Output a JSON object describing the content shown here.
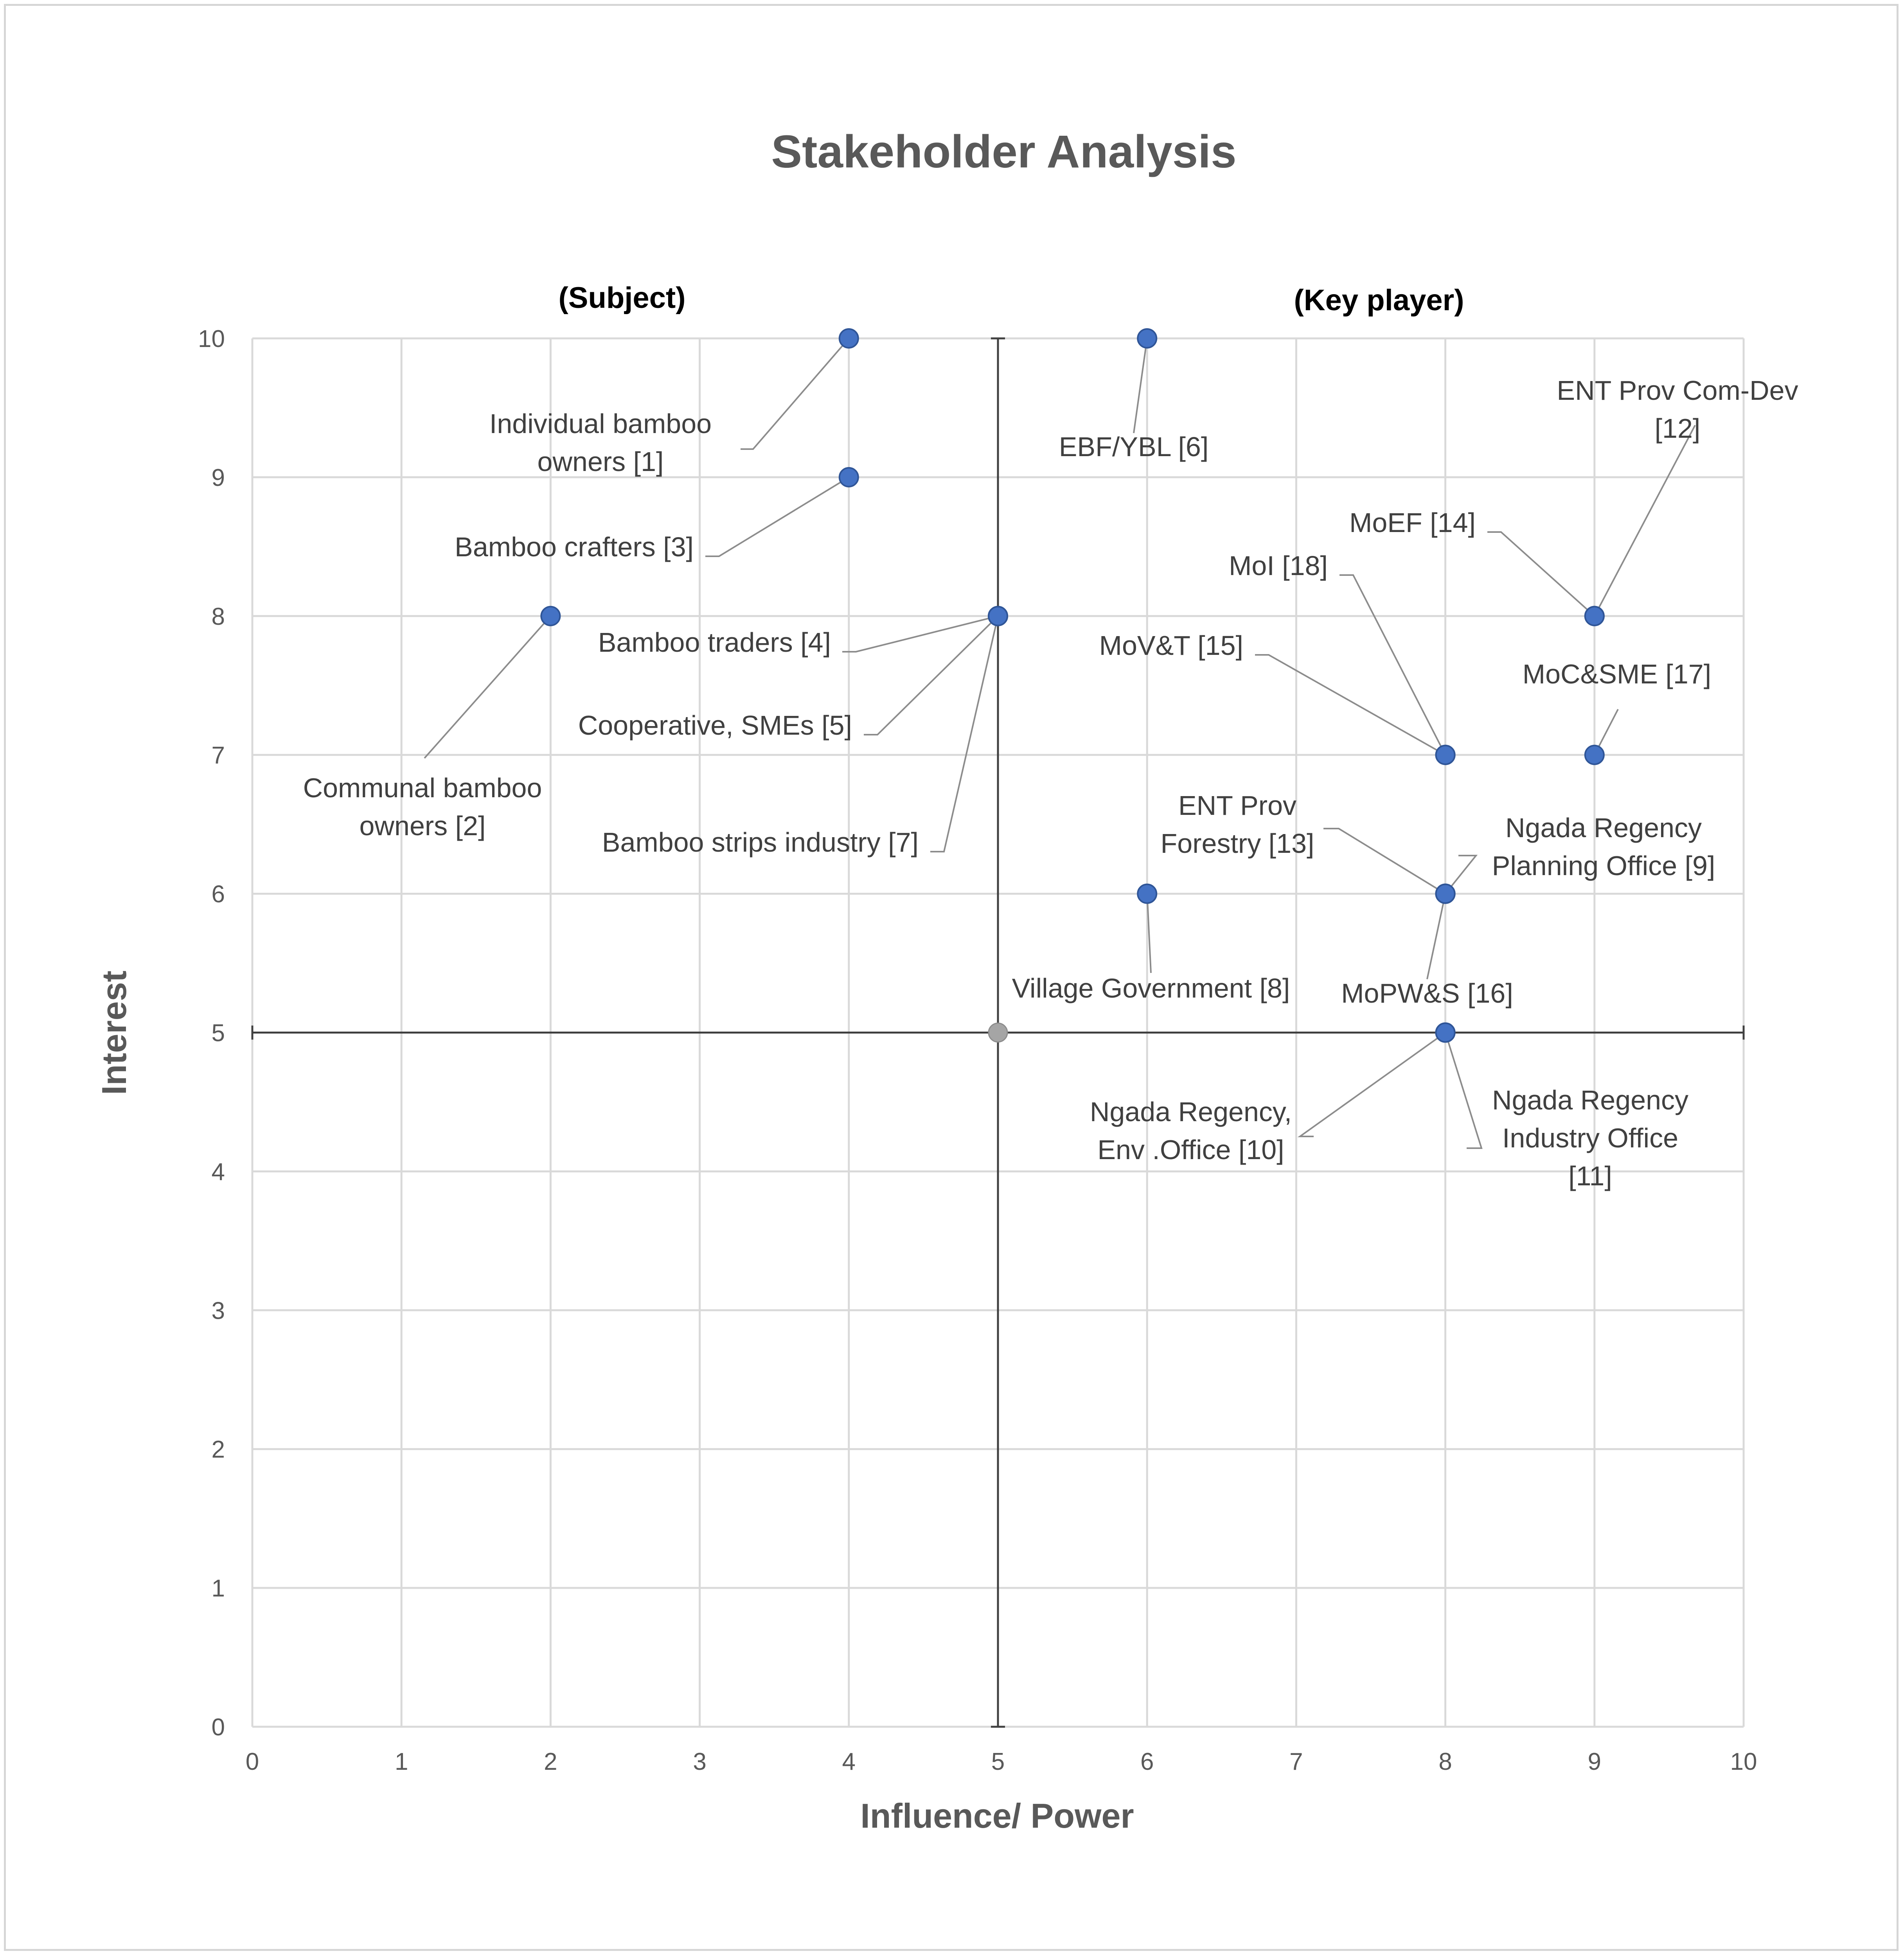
{
  "chart_data": {
    "type": "scatter",
    "title": "Stakeholder Analysis",
    "xlabel": "Influence/ Power",
    "ylabel": "Interest",
    "xlim": [
      0,
      10
    ],
    "ylim": [
      0,
      10
    ],
    "x_ticks": [
      "0",
      "1",
      "2",
      "3",
      "4",
      "5",
      "6",
      "7",
      "8",
      "9",
      "10"
    ],
    "y_ticks": [
      "0",
      "1",
      "2",
      "3",
      "4",
      "5",
      "6",
      "7",
      "8",
      "9",
      "10"
    ],
    "grid": true,
    "quadrant_lines": {
      "x": 5,
      "y": 5
    },
    "quadrant_labels": [
      "(Subject)",
      "(Key player)"
    ],
    "colors": {
      "point": "#4472C4",
      "reference_point": "#A5A5A5",
      "point_edge": "#2F5597"
    },
    "reference_point": {
      "x": 5,
      "y": 5
    },
    "points": [
      {
        "label": [
          "Individual bamboo",
          "owners [1]"
        ],
        "x": 4,
        "y": 10
      },
      {
        "label": [
          "Communal bamboo",
          "owners [2]"
        ],
        "x": 2,
        "y": 8
      },
      {
        "label": [
          "Bamboo crafters [3]"
        ],
        "x": 4,
        "y": 9
      },
      {
        "label": [
          "Bamboo traders [4]"
        ],
        "x": 5,
        "y": 8
      },
      {
        "label": [
          "Cooperative, SMEs [5]"
        ],
        "x": 5,
        "y": 8
      },
      {
        "label": [
          "EBF/YBL [6]"
        ],
        "x": 6,
        "y": 10
      },
      {
        "label": [
          "Bamboo strips industry [7]"
        ],
        "x": 5,
        "y": 8
      },
      {
        "label": [
          "Village Government [8]"
        ],
        "x": 6,
        "y": 6
      },
      {
        "label": [
          "Ngada Regency",
          "Planning Office [9]"
        ],
        "x": 8,
        "y": 6
      },
      {
        "label": [
          "Ngada Regency,",
          "Env .Office [10]"
        ],
        "x": 8,
        "y": 5
      },
      {
        "label": [
          "Ngada Regency",
          "Industry Office",
          "[11]"
        ],
        "x": 8,
        "y": 5
      },
      {
        "label": [
          "ENT Prov Com-Dev",
          "[12]"
        ],
        "x": 9,
        "y": 8
      },
      {
        "label": [
          "ENT Prov",
          "Forestry [13]"
        ],
        "x": 8,
        "y": 6
      },
      {
        "label": [
          "MoEF [14]"
        ],
        "x": 9,
        "y": 8
      },
      {
        "label": [
          "MoV&T [15]"
        ],
        "x": 8,
        "y": 7
      },
      {
        "label": [
          "MoPW&S [16]"
        ],
        "x": 8,
        "y": 6
      },
      {
        "label": [
          "MoC&SME [17]"
        ],
        "x": 9,
        "y": 7
      },
      {
        "label": [
          "MoI [18]"
        ],
        "x": 8,
        "y": 7
      }
    ]
  }
}
